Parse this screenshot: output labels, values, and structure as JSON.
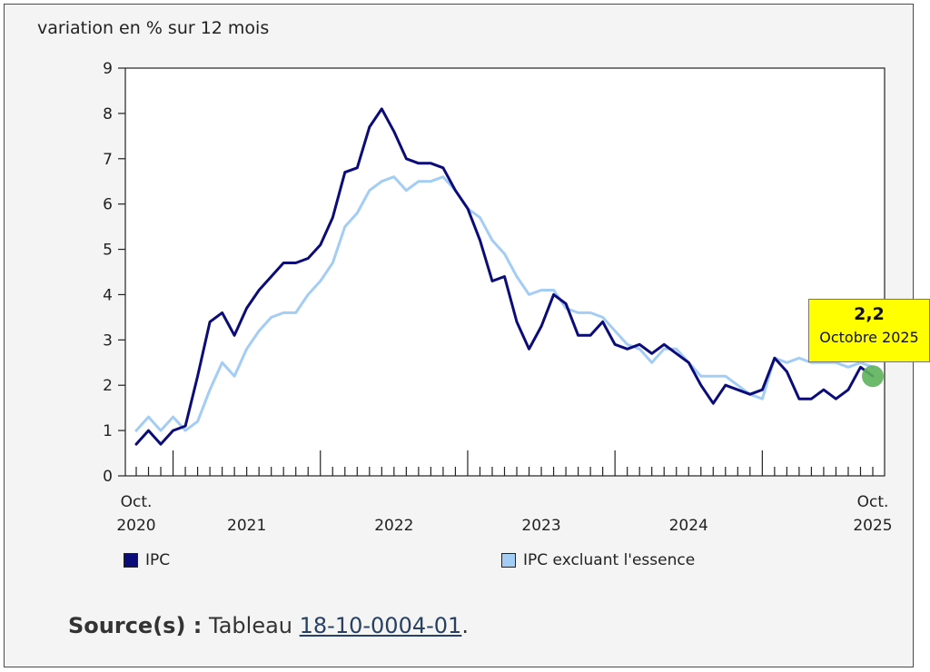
{
  "chart_data": {
    "type": "line",
    "title": "",
    "ylabel": "variation en % sur 12 mois",
    "xlabel": "",
    "ylim": [
      0,
      9
    ],
    "yticks": [
      0,
      1,
      2,
      3,
      4,
      5,
      6,
      7,
      8,
      9
    ],
    "x_start": "2020-10",
    "x_end": "2025-10",
    "x_tick_labels": [
      {
        "line1": "Oct.",
        "line2": "2020"
      },
      {
        "line1": "",
        "line2": "2021"
      },
      {
        "line1": "",
        "line2": "2022"
      },
      {
        "line1": "",
        "line2": "2023"
      },
      {
        "line1": "",
        "line2": "2024"
      },
      {
        "line1": "Oct.",
        "line2": "2025"
      }
    ],
    "x": [
      "2020-10",
      "2020-11",
      "2020-12",
      "2021-01",
      "2021-02",
      "2021-03",
      "2021-04",
      "2021-05",
      "2021-06",
      "2021-07",
      "2021-08",
      "2021-09",
      "2021-10",
      "2021-11",
      "2021-12",
      "2022-01",
      "2022-02",
      "2022-03",
      "2022-04",
      "2022-05",
      "2022-06",
      "2022-07",
      "2022-08",
      "2022-09",
      "2022-10",
      "2022-11",
      "2022-12",
      "2023-01",
      "2023-02",
      "2023-03",
      "2023-04",
      "2023-05",
      "2023-06",
      "2023-07",
      "2023-08",
      "2023-09",
      "2023-10",
      "2023-11",
      "2023-12",
      "2024-01",
      "2024-02",
      "2024-03",
      "2024-04",
      "2024-05",
      "2024-06",
      "2024-07",
      "2024-08",
      "2024-09",
      "2024-10",
      "2024-11",
      "2024-12",
      "2025-01",
      "2025-02",
      "2025-03",
      "2025-04",
      "2025-05",
      "2025-06",
      "2025-07",
      "2025-08",
      "2025-09",
      "2025-10"
    ],
    "series": [
      {
        "name": "IPC",
        "color": "#0b0b7a",
        "values": [
          0.7,
          1.0,
          0.7,
          1.0,
          1.1,
          2.2,
          3.4,
          3.6,
          3.1,
          3.7,
          4.1,
          4.4,
          4.7,
          4.7,
          4.8,
          5.1,
          5.7,
          6.7,
          6.8,
          7.7,
          8.1,
          7.6,
          7.0,
          6.9,
          6.9,
          6.8,
          6.3,
          5.9,
          5.2,
          4.3,
          4.4,
          3.4,
          2.8,
          3.3,
          4.0,
          3.8,
          3.1,
          3.1,
          3.4,
          2.9,
          2.8,
          2.9,
          2.7,
          2.9,
          2.7,
          2.5,
          2.0,
          1.6,
          2.0,
          1.9,
          1.8,
          1.9,
          2.6,
          2.3,
          1.7,
          1.7,
          1.9,
          1.7,
          1.9,
          2.4,
          2.2
        ]
      },
      {
        "name": "IPC excluant l'essence",
        "color": "#a3cdf5",
        "values": [
          1.0,
          1.3,
          1.0,
          1.3,
          1.0,
          1.2,
          1.9,
          2.5,
          2.2,
          2.8,
          3.2,
          3.5,
          3.6,
          3.6,
          4.0,
          4.3,
          4.7,
          5.5,
          5.8,
          6.3,
          6.5,
          6.6,
          6.3,
          6.5,
          6.5,
          6.6,
          6.3,
          5.9,
          5.7,
          5.2,
          4.9,
          4.4,
          4.0,
          4.1,
          4.1,
          3.7,
          3.6,
          3.6,
          3.5,
          3.2,
          2.9,
          2.8,
          2.5,
          2.8,
          2.8,
          2.5,
          2.2,
          2.2,
          2.2,
          2.0,
          1.8,
          1.7,
          2.6,
          2.5,
          2.6,
          2.5,
          2.5,
          2.5,
          2.4,
          2.5,
          2.4
        ]
      }
    ],
    "legend_placement": "bottom",
    "grid": false,
    "highlight": {
      "value_label": "2,2",
      "date_label": "Octobre 2025",
      "series_index": 0,
      "point_index": 60,
      "marker_color": "#5db35d"
    }
  },
  "source": {
    "label": "Source(s) :",
    "prefix": "Tableau",
    "link_text": "18-10-0004-01",
    "suffix": "."
  }
}
